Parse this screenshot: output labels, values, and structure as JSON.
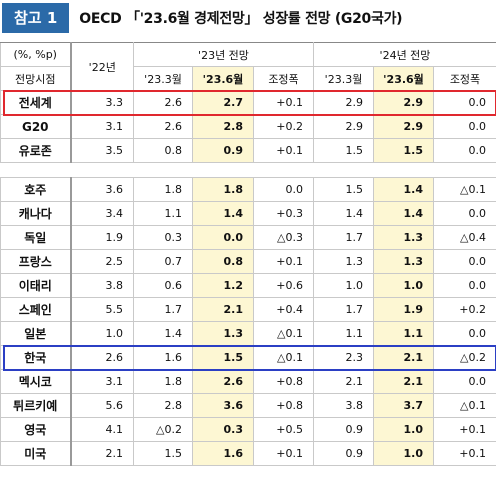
{
  "header": {
    "badge": "참고 1",
    "title": "OECD 「'23.6월 경제전망」 성장률 전망 (G20국가)"
  },
  "table": {
    "unit": "(%, %p)",
    "row_header": "전망시점",
    "col_2022": "'22년",
    "group_2023": "'23년 전망",
    "group_2024": "'24년 전망",
    "subcolumns_2023": [
      "'23.3월",
      "'23.6월",
      "조정폭"
    ],
    "subcolumns_2024": [
      "'23.3월",
      "'23.6월",
      "조정폭"
    ],
    "sections": [
      [
        [
          "전세계",
          "3.3",
          "2.6",
          "2.7",
          "+0.1",
          "2.9",
          "2.9",
          "0.0"
        ],
        [
          "G20",
          "3.1",
          "2.6",
          "2.8",
          "+0.2",
          "2.9",
          "2.9",
          "0.0"
        ],
        [
          "유로존",
          "3.5",
          "0.8",
          "0.9",
          "+0.1",
          "1.5",
          "1.5",
          "0.0"
        ]
      ],
      [
        [
          "호주",
          "3.6",
          "1.8",
          "1.8",
          "0.0",
          "1.5",
          "1.4",
          "△0.1"
        ],
        [
          "캐나다",
          "3.4",
          "1.1",
          "1.4",
          "+0.3",
          "1.4",
          "1.4",
          "0.0"
        ],
        [
          "독일",
          "1.9",
          "0.3",
          "0.0",
          "△0.3",
          "1.7",
          "1.3",
          "△0.4"
        ],
        [
          "프랑스",
          "2.5",
          "0.7",
          "0.8",
          "+0.1",
          "1.3",
          "1.3",
          "0.0"
        ],
        [
          "이태리",
          "3.8",
          "0.6",
          "1.2",
          "+0.6",
          "1.0",
          "1.0",
          "0.0"
        ],
        [
          "스페인",
          "5.5",
          "1.7",
          "2.1",
          "+0.4",
          "1.7",
          "1.9",
          "+0.2"
        ],
        [
          "일본",
          "1.0",
          "1.4",
          "1.3",
          "△0.1",
          "1.1",
          "1.1",
          "0.0"
        ],
        [
          "한국",
          "2.6",
          "1.6",
          "1.5",
          "△0.1",
          "2.3",
          "2.1",
          "△0.2"
        ],
        [
          "멕시코",
          "3.1",
          "1.8",
          "2.6",
          "+0.8",
          "2.1",
          "2.1",
          "0.0"
        ],
        [
          "튀르키예",
          "5.6",
          "2.8",
          "3.6",
          "+0.8",
          "3.8",
          "3.7",
          "△0.1"
        ],
        [
          "영국",
          "4.1",
          "△0.2",
          "0.3",
          "+0.5",
          "0.9",
          "1.0",
          "+0.1"
        ],
        [
          "미국",
          "2.1",
          "1.5",
          "1.6",
          "+0.1",
          "0.9",
          "1.0",
          "+0.1"
        ]
      ]
    ]
  }
}
